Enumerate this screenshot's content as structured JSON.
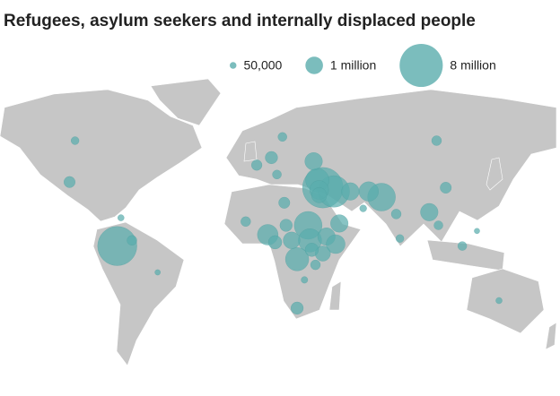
{
  "title": "Refugees, asylum seekers and internally displaced people",
  "legend": [
    {
      "value": 50000,
      "label": "50,000"
    },
    {
      "value": 1000000,
      "label": "1 million"
    },
    {
      "value": 8000000,
      "label": "8 million"
    }
  ],
  "bubbles": [
    {
      "lon": -74,
      "lat": 4,
      "value": 6500000
    },
    {
      "lon": 38,
      "lat": 35,
      "value": 7000000
    },
    {
      "lon": 44,
      "lat": 33,
      "value": 4000000
    },
    {
      "lon": 35,
      "lat": 39,
      "value": 2000000
    },
    {
      "lon": 36,
      "lat": 33.8,
      "value": 1200000
    },
    {
      "lon": 36,
      "lat": 31,
      "value": 700000
    },
    {
      "lon": 70,
      "lat": 30,
      "value": 3000000
    },
    {
      "lon": 63,
      "lat": 33,
      "value": 1300000
    },
    {
      "lon": 53,
      "lat": 33,
      "value": 1000000
    },
    {
      "lon": 30,
      "lat": 15,
      "value": 3000000
    },
    {
      "lon": 31,
      "lat": 7,
      "value": 2000000
    },
    {
      "lon": 40,
      "lat": 9,
      "value": 1000000
    },
    {
      "lon": 45,
      "lat": 5,
      "value": 1200000
    },
    {
      "lon": 24,
      "lat": -3,
      "value": 2000000
    },
    {
      "lon": 8,
      "lat": 10,
      "value": 1500000
    },
    {
      "lon": 38,
      "lat": 0,
      "value": 700000
    },
    {
      "lon": 47,
      "lat": 16,
      "value": 1000000
    },
    {
      "lon": 96,
      "lat": 22,
      "value": 1000000
    },
    {
      "lon": 33,
      "lat": 49,
      "value": 1000000
    },
    {
      "lon": 10,
      "lat": 51,
      "value": 400000
    },
    {
      "lon": -100,
      "lat": 38,
      "value": 300000
    },
    {
      "lon": 24,
      "lat": -29,
      "value": 400000
    },
    {
      "lon": 100,
      "lat": 60,
      "value": 200000
    },
    {
      "lon": 12,
      "lat": 6,
      "value": 500000
    },
    {
      "lon": 18,
      "lat": 15,
      "value": 400000
    },
    {
      "lon": 32,
      "lat": 2,
      "value": 500000
    },
    {
      "lon": 34,
      "lat": -6,
      "value": 200000
    },
    {
      "lon": 78,
      "lat": 21,
      "value": 200000
    },
    {
      "lon": 105,
      "lat": 35,
      "value": 300000
    },
    {
      "lon": 101,
      "lat": 15,
      "value": 150000
    },
    {
      "lon": 122,
      "lat": 12,
      "value": 20000
    },
    {
      "lon": 114,
      "lat": 4,
      "value": 150000
    },
    {
      "lon": 134,
      "lat": -25,
      "value": 40000
    },
    {
      "lon": -66,
      "lat": 7,
      "value": 200000
    },
    {
      "lon": -72,
      "lat": 19,
      "value": 40000
    },
    {
      "lon": -97,
      "lat": 60,
      "value": 100000
    },
    {
      "lon": 16,
      "lat": 62,
      "value": 150000
    },
    {
      "lon": 2,
      "lat": 47,
      "value": 250000
    },
    {
      "lon": 13,
      "lat": 42,
      "value": 150000
    },
    {
      "lon": -4,
      "lat": 17,
      "value": 200000
    },
    {
      "lon": 17,
      "lat": 27,
      "value": 300000
    },
    {
      "lon": 21,
      "lat": 7,
      "value": 900000
    },
    {
      "lon": 28,
      "lat": -14,
      "value": 50000
    },
    {
      "lon": -52,
      "lat": -10,
      "value": 20000
    },
    {
      "lon": 60,
      "lat": 24,
      "value": 60000
    },
    {
      "lon": 80,
      "lat": 8,
      "value": 100000
    }
  ]
}
